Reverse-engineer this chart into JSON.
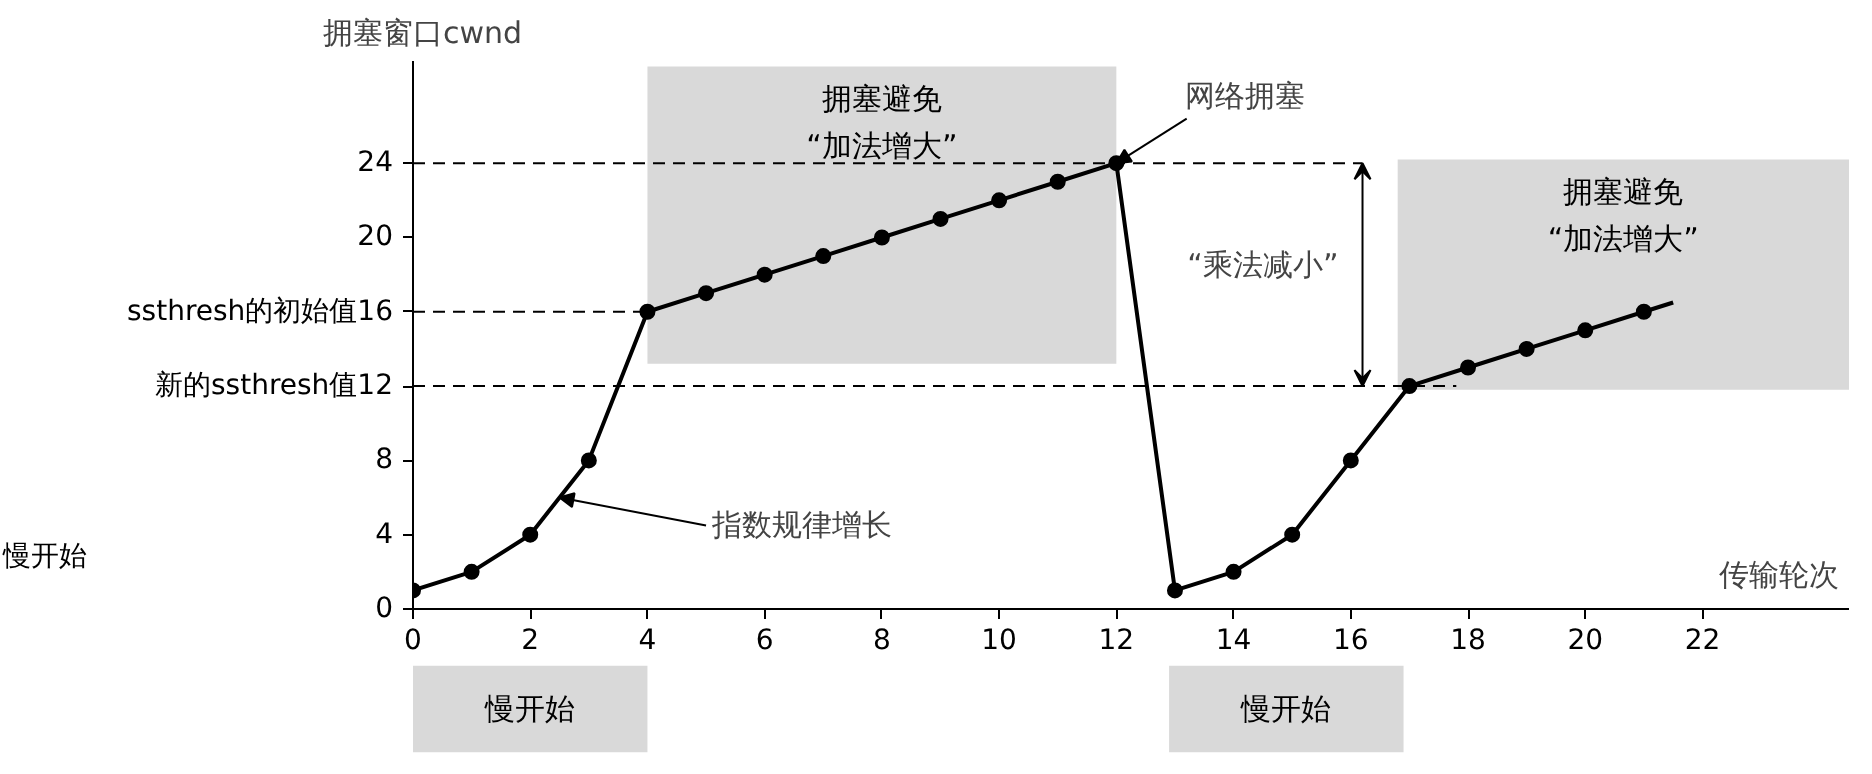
{
  "chart_data": {
    "type": "line",
    "xlabel": "传输轮次",
    "ylabel": "拥塞窗口cwnd",
    "xlim": [
      0,
      24.5
    ],
    "ylim": [
      0,
      29.5
    ],
    "xticks": [
      0,
      2,
      4,
      6,
      8,
      10,
      12,
      14,
      16,
      18,
      20,
      22
    ],
    "yticks": [
      0,
      4,
      8,
      {
        "value": 12,
        "label": "新的ssthresh值12"
      },
      {
        "value": 16,
        "label": "ssthresh的初始值16"
      },
      20,
      24
    ],
    "series": [
      {
        "color": "#000000",
        "marker": "circle",
        "x": [
          0,
          1,
          2,
          3,
          4,
          5,
          6,
          7,
          8,
          9,
          10,
          11,
          12,
          13,
          14,
          15,
          16,
          17,
          18,
          19,
          20,
          21
        ],
        "values": [
          1,
          2,
          4,
          8,
          16,
          17,
          18,
          19,
          20,
          21,
          22,
          23,
          24,
          1,
          2,
          4,
          8,
          12,
          13,
          14,
          15,
          16
        ]
      },
      {
        "color": "#000000",
        "marker": "none",
        "x": [
          21,
          21.5
        ],
        "values": [
          16,
          16.5
        ]
      }
    ],
    "ref_lines": [
      {
        "axis": "y",
        "value": 24,
        "line_style": "dashed",
        "color": "#000000"
      },
      {
        "axis": "y",
        "value": 16,
        "line_style": "dashed",
        "color": "#000000"
      },
      {
        "axis": "y",
        "value": 12,
        "line_style": "dashed",
        "color": "#000000"
      }
    ],
    "bands": [
      {
        "axis": "x",
        "from": 4,
        "to": 12,
        "label": "拥塞避免\n“加法增大”",
        "color": "#d9d9d9"
      },
      {
        "axis": "x",
        "from": 16.8,
        "to": 24.5,
        "label": "拥塞避免\n“加法增大”",
        "color": "#d9d9d9"
      }
    ],
    "annotations": [
      {
        "text": "网络拥塞",
        "x": 12,
        "y": 24
      },
      "慢开始",
      {
        "text": "指数规律增长",
        "x": 2.5,
        "y": 6
      },
      "“乘法减小”",
      "慢开始",
      "慢开始"
    ],
    "grid": false
  }
}
